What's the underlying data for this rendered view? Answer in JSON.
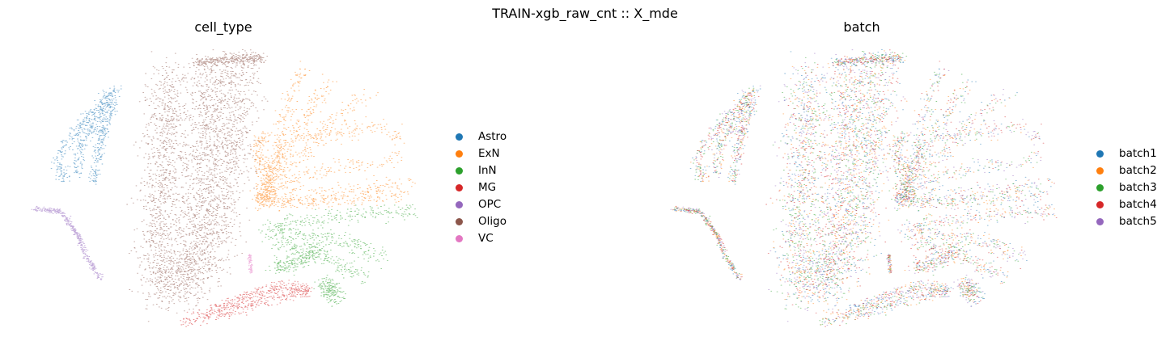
{
  "chart_data": [
    {
      "type": "scatter",
      "suptitle": "TRAIN-xgb_raw_cnt :: X_mde",
      "title": "cell_type",
      "xlabel": "",
      "ylabel": "",
      "axes": "off",
      "grid": false,
      "legend_position": "right",
      "legend": [
        {
          "label": "Astro",
          "color": "#1f77b4"
        },
        {
          "label": "ExN",
          "color": "#ff7f0e"
        },
        {
          "label": "InN",
          "color": "#2ca02c"
        },
        {
          "label": "MG",
          "color": "#d62728"
        },
        {
          "label": "OPC",
          "color": "#9467bd"
        },
        {
          "label": "Oligo",
          "color": "#8c564b"
        },
        {
          "label": "VC",
          "color": "#e377c2"
        }
      ]
    },
    {
      "type": "scatter",
      "title": "batch",
      "xlabel": "",
      "ylabel": "",
      "axes": "off",
      "grid": false,
      "legend_position": "right",
      "legend": [
        {
          "label": "batch1",
          "color": "#1f77b4"
        },
        {
          "label": "batch2",
          "color": "#ff7f0e"
        },
        {
          "label": "batch3",
          "color": "#2ca02c"
        },
        {
          "label": "batch4",
          "color": "#d62728"
        },
        {
          "label": "batch5",
          "color": "#9467bd"
        }
      ]
    }
  ]
}
